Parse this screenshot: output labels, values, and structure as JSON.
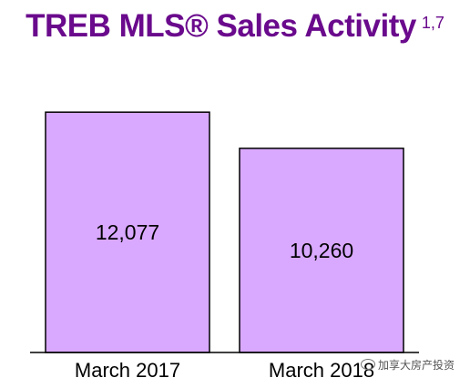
{
  "title": {
    "text": "TREB MLS® Sales Activity",
    "superscript": "1,7"
  },
  "colors": {
    "title": "#6a0a8c",
    "bar_fill": "#d9a8ff",
    "bar_stroke": "#000000",
    "axis": "#000000"
  },
  "watermark": "加享大房产投资",
  "chart_data": {
    "type": "bar",
    "title": "TREB MLS® Sales Activity",
    "categories": [
      "March 2017",
      "March 2018"
    ],
    "values": [
      12077,
      10260
    ],
    "value_labels": [
      "12,077",
      "10,260"
    ],
    "xlabel": "",
    "ylabel": "",
    "ylim": [
      0,
      13000
    ],
    "grid": false,
    "legend": "none"
  }
}
